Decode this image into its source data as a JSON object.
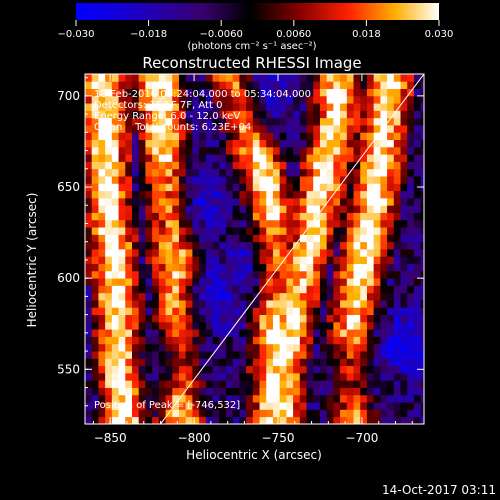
{
  "chart_data": {
    "type": "heatmap",
    "title": "Reconstructed RHESSI Image",
    "xlabel": "Heliocentric X (arcsec)",
    "ylabel": "Heliocentric Y (arcsec)",
    "xlim": [
      -865,
      -663
    ],
    "ylim": [
      520,
      712
    ],
    "x_ticks": [
      -850,
      -800,
      -750,
      -700
    ],
    "x_tick_labels": [
      "−850",
      "−800",
      "−750",
      "−700"
    ],
    "y_ticks": [
      550,
      600,
      650,
      700
    ],
    "y_tick_labels": [
      "550",
      "600",
      "650",
      "700"
    ],
    "colorbar": {
      "range": [
        -0.03,
        0.03
      ],
      "ticks": [
        -0.03,
        -0.018,
        -0.006,
        0.006,
        0.018,
        0.03
      ],
      "tick_labels": [
        "−0.030",
        "−0.018",
        "−0.0060",
        "0.0060",
        "0.018",
        "0.030"
      ],
      "unit_label": "(photons cm⁻² s⁻¹ asec⁻²)"
    },
    "annotations": [
      "18-Feb-2016 05:24:04.000 to 05:34:04.000",
      "Detectors: 1F 5F 7F, Att 0",
      "Energy Range: 6.0 - 12.0 keV",
      "Clean    Total counts: 6.23E+04"
    ],
    "peak_label": "Position of Peak = [-746,532]",
    "limb_line": {
      "x": [
        -820,
        -663
      ],
      "y": [
        520,
        712
      ]
    },
    "peak_position": [
      -746,
      532
    ],
    "grid": false,
    "pixel_size_arcsec": 4,
    "bright_ridges": [
      {
        "x": [
          -855,
          -852,
          -848,
          -845,
          -842
        ],
        "y": [
          712,
          660,
          610,
          570,
          520
        ]
      },
      {
        "x": [
          -822,
          -818,
          -813,
          -810,
          -808
        ],
        "y": [
          712,
          670,
          630,
          590,
          545
        ]
      },
      {
        "x": [
          -778,
          -770,
          -760,
          -755,
          -752
        ],
        "y": [
          712,
          690,
          660,
          640,
          620
        ]
      },
      {
        "x": [
          -715,
          -722,
          -730,
          -740,
          -746,
          -748
        ],
        "y": [
          690,
          660,
          625,
          590,
          555,
          532
        ]
      },
      {
        "x": [
          -683,
          -688,
          -693,
          -700,
          -706
        ],
        "y": [
          712,
          675,
          640,
          605,
          570
        ]
      }
    ],
    "dark_regions": [
      {
        "x": -800,
        "y": 640
      },
      {
        "x": -790,
        "y": 590
      },
      {
        "x": -810,
        "y": 555
      },
      {
        "x": -760,
        "y": 700
      },
      {
        "x": -765,
        "y": 605
      },
      {
        "x": -705,
        "y": 545
      },
      {
        "x": -675,
        "y": 565
      }
    ]
  },
  "footer": {
    "date": "14-Oct-2017 03:11"
  }
}
